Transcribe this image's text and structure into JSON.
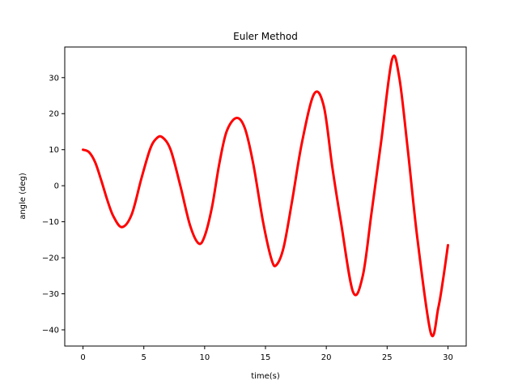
{
  "chart_data": {
    "type": "line",
    "title": "Euler Method",
    "xlabel": "time(s)",
    "ylabel": "angle (deg)",
    "xlim": [
      -1.5,
      31.5
    ],
    "ylim": [
      -44.5,
      38.5
    ],
    "xticks": [
      0,
      5,
      10,
      15,
      20,
      25,
      30
    ],
    "yticks": [
      -40,
      -30,
      -20,
      -10,
      0,
      10,
      20,
      30
    ],
    "xtick_labels": [
      "0",
      "5",
      "10",
      "15",
      "20",
      "25",
      "30"
    ],
    "ytick_labels": [
      "−40",
      "−30",
      "−20",
      "−10",
      "0",
      "10",
      "20",
      "30"
    ],
    "grid": false,
    "series": [
      {
        "color": "#ff0000",
        "x": [
          0,
          0.5,
          1,
          1.5,
          2,
          2.5,
          3.2,
          4,
          4.8,
          5.5,
          6,
          6.5,
          7.2,
          8,
          8.8,
          9.5,
          10,
          10.6,
          11.2,
          11.8,
          12.6,
          13.3,
          14,
          14.8,
          15.5,
          15.9,
          16.5,
          17.2,
          18,
          19,
          19.8,
          20.5,
          21.2,
          22.2,
          23,
          23.7,
          24.5,
          25.4,
          26,
          26.7,
          27.5,
          28.6,
          29.2,
          29.6,
          30
        ],
        "y": [
          10,
          9.3,
          6.5,
          1.5,
          -4,
          -8.5,
          -11.5,
          -8,
          2,
          10,
          13,
          13.5,
          10,
          0,
          -11,
          -16,
          -14,
          -6,
          6,
          15,
          18.8,
          16,
          6,
          -10,
          -20.5,
          -22,
          -17,
          -4,
          12,
          25.5,
          22,
          5,
          -10,
          -29.5,
          -25,
          -8,
          12,
          35,
          30,
          10,
          -15,
          -41,
          -34,
          -26,
          -16.5
        ]
      }
    ]
  }
}
